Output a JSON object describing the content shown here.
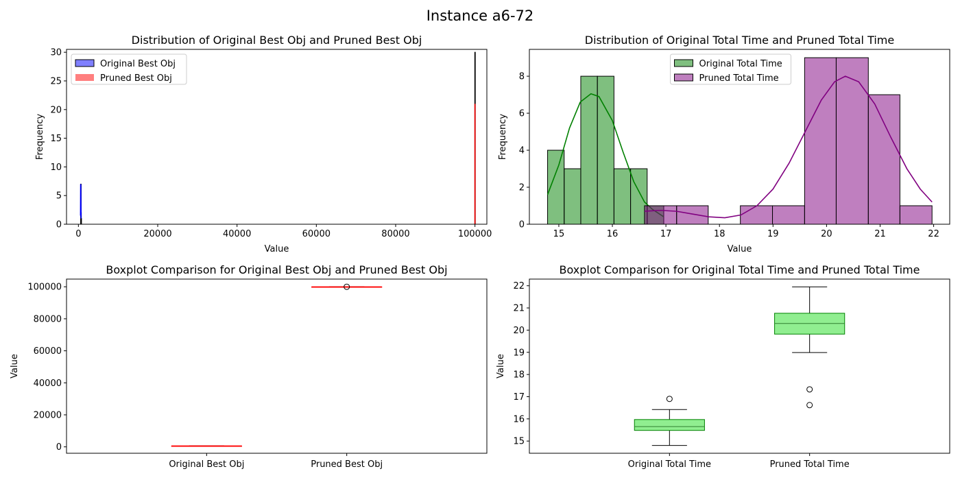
{
  "figure": {
    "suptitle": "Instance a6-72"
  },
  "chart_data": [
    {
      "type": "histogram",
      "title": "Distribution of Original Best Obj and Pruned Best Obj",
      "xlabel": "Value",
      "ylabel": "Frequency",
      "xlim": [
        -3000,
        103000
      ],
      "ylim": [
        0,
        30.5
      ],
      "xticks": [
        0,
        20000,
        40000,
        60000,
        80000,
        100000
      ],
      "xtick_labels": [
        "0",
        "20000",
        "40000",
        "60000",
        "80000",
        "100000"
      ],
      "yticks": [
        0,
        5,
        10,
        15,
        20,
        25,
        30
      ],
      "ytick_labels": [
        "0",
        "5",
        "10",
        "15",
        "20",
        "25",
        "30"
      ],
      "legend": {
        "placement": "upper-left",
        "entries": [
          {
            "label": "Original Best Obj",
            "color": "#0000ff",
            "edge": true
          },
          {
            "label": "Pruned Best Obj",
            "color": "#ff0000",
            "edge": false
          }
        ]
      },
      "series": [
        {
          "name": "Original Best Obj",
          "color": "#0000ff",
          "bins": [
            [
              560,
              600,
              7
            ],
            [
              600,
              640,
              2
            ],
            [
              640,
              680,
              1
            ]
          ],
          "kde": [
            [
              530,
              1.5
            ],
            [
              560,
              7
            ],
            [
              600,
              6.8
            ],
            [
              640,
              3
            ],
            [
              680,
              1
            ]
          ]
        },
        {
          "name": "Pruned Best Obj",
          "color": "#ff0000",
          "bins": [
            [
              99950,
              100050,
              30
            ]
          ],
          "kde": [
            [
              100000,
              0
            ],
            [
              100000,
              21
            ]
          ]
        }
      ]
    },
    {
      "type": "histogram",
      "title": "Distribution of Original Total Time and Pruned Total Time",
      "xlabel": "Value",
      "ylabel": "Frequency",
      "xlim": [
        14.45,
        22.3
      ],
      "ylim": [
        0,
        9.45
      ],
      "xticks": [
        15,
        16,
        17,
        18,
        19,
        20,
        21,
        22
      ],
      "xtick_labels": [
        "15",
        "16",
        "17",
        "18",
        "19",
        "20",
        "21",
        "22"
      ],
      "yticks": [
        0,
        2,
        4,
        6,
        8
      ],
      "ytick_labels": [
        "0",
        "2",
        "4",
        "6",
        "8"
      ],
      "legend": {
        "placement": "upper-center",
        "entries": [
          {
            "label": "Original Total Time",
            "color": "#008000"
          },
          {
            "label": "Pruned Total Time",
            "color": "#800080"
          }
        ]
      },
      "series": [
        {
          "name": "Original Total Time",
          "color": "#008000",
          "bins": [
            [
              14.79,
              15.1,
              4
            ],
            [
              15.1,
              15.41,
              3
            ],
            [
              15.41,
              15.72,
              8
            ],
            [
              15.72,
              16.03,
              8
            ],
            [
              16.03,
              16.34,
              3
            ],
            [
              16.34,
              16.65,
              3
            ],
            [
              16.65,
              16.96,
              1
            ]
          ],
          "kde": [
            [
              14.79,
              1.6
            ],
            [
              15.0,
              3.2
            ],
            [
              15.2,
              5.2
            ],
            [
              15.4,
              6.6
            ],
            [
              15.6,
              7.05
            ],
            [
              15.75,
              6.9
            ],
            [
              16.0,
              5.6
            ],
            [
              16.2,
              3.9
            ],
            [
              16.4,
              2.3
            ],
            [
              16.6,
              1.2
            ],
            [
              16.75,
              0.8
            ],
            [
              16.96,
              0.4
            ]
          ]
        },
        {
          "name": "Pruned Total Time",
          "color": "#800080",
          "bins": [
            [
              16.6,
              17.2,
              1
            ],
            [
              17.2,
              17.79,
              1
            ],
            [
              17.79,
              18.39,
              0
            ],
            [
              18.39,
              18.99,
              1
            ],
            [
              18.99,
              19.59,
              1
            ],
            [
              19.59,
              20.18,
              9
            ],
            [
              20.18,
              20.78,
              9
            ],
            [
              20.78,
              21.37,
              7
            ],
            [
              21.37,
              21.97,
              1
            ]
          ],
          "kde": [
            [
              16.6,
              0.7
            ],
            [
              16.9,
              0.75
            ],
            [
              17.2,
              0.7
            ],
            [
              17.5,
              0.55
            ],
            [
              17.8,
              0.4
            ],
            [
              18.1,
              0.35
            ],
            [
              18.4,
              0.5
            ],
            [
              18.7,
              1.0
            ],
            [
              19.0,
              1.9
            ],
            [
              19.3,
              3.3
            ],
            [
              19.6,
              5.0
            ],
            [
              19.9,
              6.7
            ],
            [
              20.15,
              7.7
            ],
            [
              20.35,
              8.0
            ],
            [
              20.6,
              7.7
            ],
            [
              20.9,
              6.5
            ],
            [
              21.2,
              4.7
            ],
            [
              21.5,
              3.0
            ],
            [
              21.75,
              1.9
            ],
            [
              21.97,
              1.2
            ]
          ]
        }
      ]
    },
    {
      "type": "box",
      "title": "Boxplot Comparison for Original Best Obj and Pruned Best Obj",
      "ylabel": "Value",
      "ylim": [
        -4000,
        104800
      ],
      "yticks": [
        0,
        20000,
        40000,
        60000,
        80000,
        100000
      ],
      "ytick_labels": [
        "0",
        "20000",
        "40000",
        "60000",
        "80000",
        "100000"
      ],
      "box_color": "#90ee90",
      "box_edge": "#ff0000",
      "categories": [
        "Original Best Obj",
        "Pruned Best Obj"
      ],
      "boxes": [
        {
          "whislo": 560,
          "q1": 580,
          "med": 600,
          "q3": 620,
          "whishi": 680,
          "fliers": []
        },
        {
          "whislo": 100000,
          "q1": 100000,
          "med": 100000,
          "q3": 100000,
          "whishi": 100000,
          "fliers": [
            100000
          ]
        }
      ]
    },
    {
      "type": "box",
      "title": "Boxplot Comparison for Original Total Time and Pruned Total Time",
      "ylabel": "Value",
      "ylim": [
        14.45,
        22.3
      ],
      "yticks": [
        15,
        16,
        17,
        18,
        19,
        20,
        21,
        22
      ],
      "ytick_labels": [
        "15",
        "16",
        "17",
        "18",
        "19",
        "20",
        "21",
        "22"
      ],
      "box_color": "#90ee90",
      "box_edge": "#008000",
      "categories": [
        "Original Total Time",
        "Pruned Total Time"
      ],
      "boxes": [
        {
          "whislo": 14.8,
          "q1": 15.48,
          "med": 15.65,
          "q3": 15.97,
          "whishi": 16.42,
          "fliers": [
            16.9
          ]
        },
        {
          "whislo": 18.99,
          "q1": 19.82,
          "med": 20.3,
          "q3": 20.76,
          "whishi": 21.95,
          "fliers": [
            17.33,
            16.62
          ]
        }
      ]
    }
  ]
}
